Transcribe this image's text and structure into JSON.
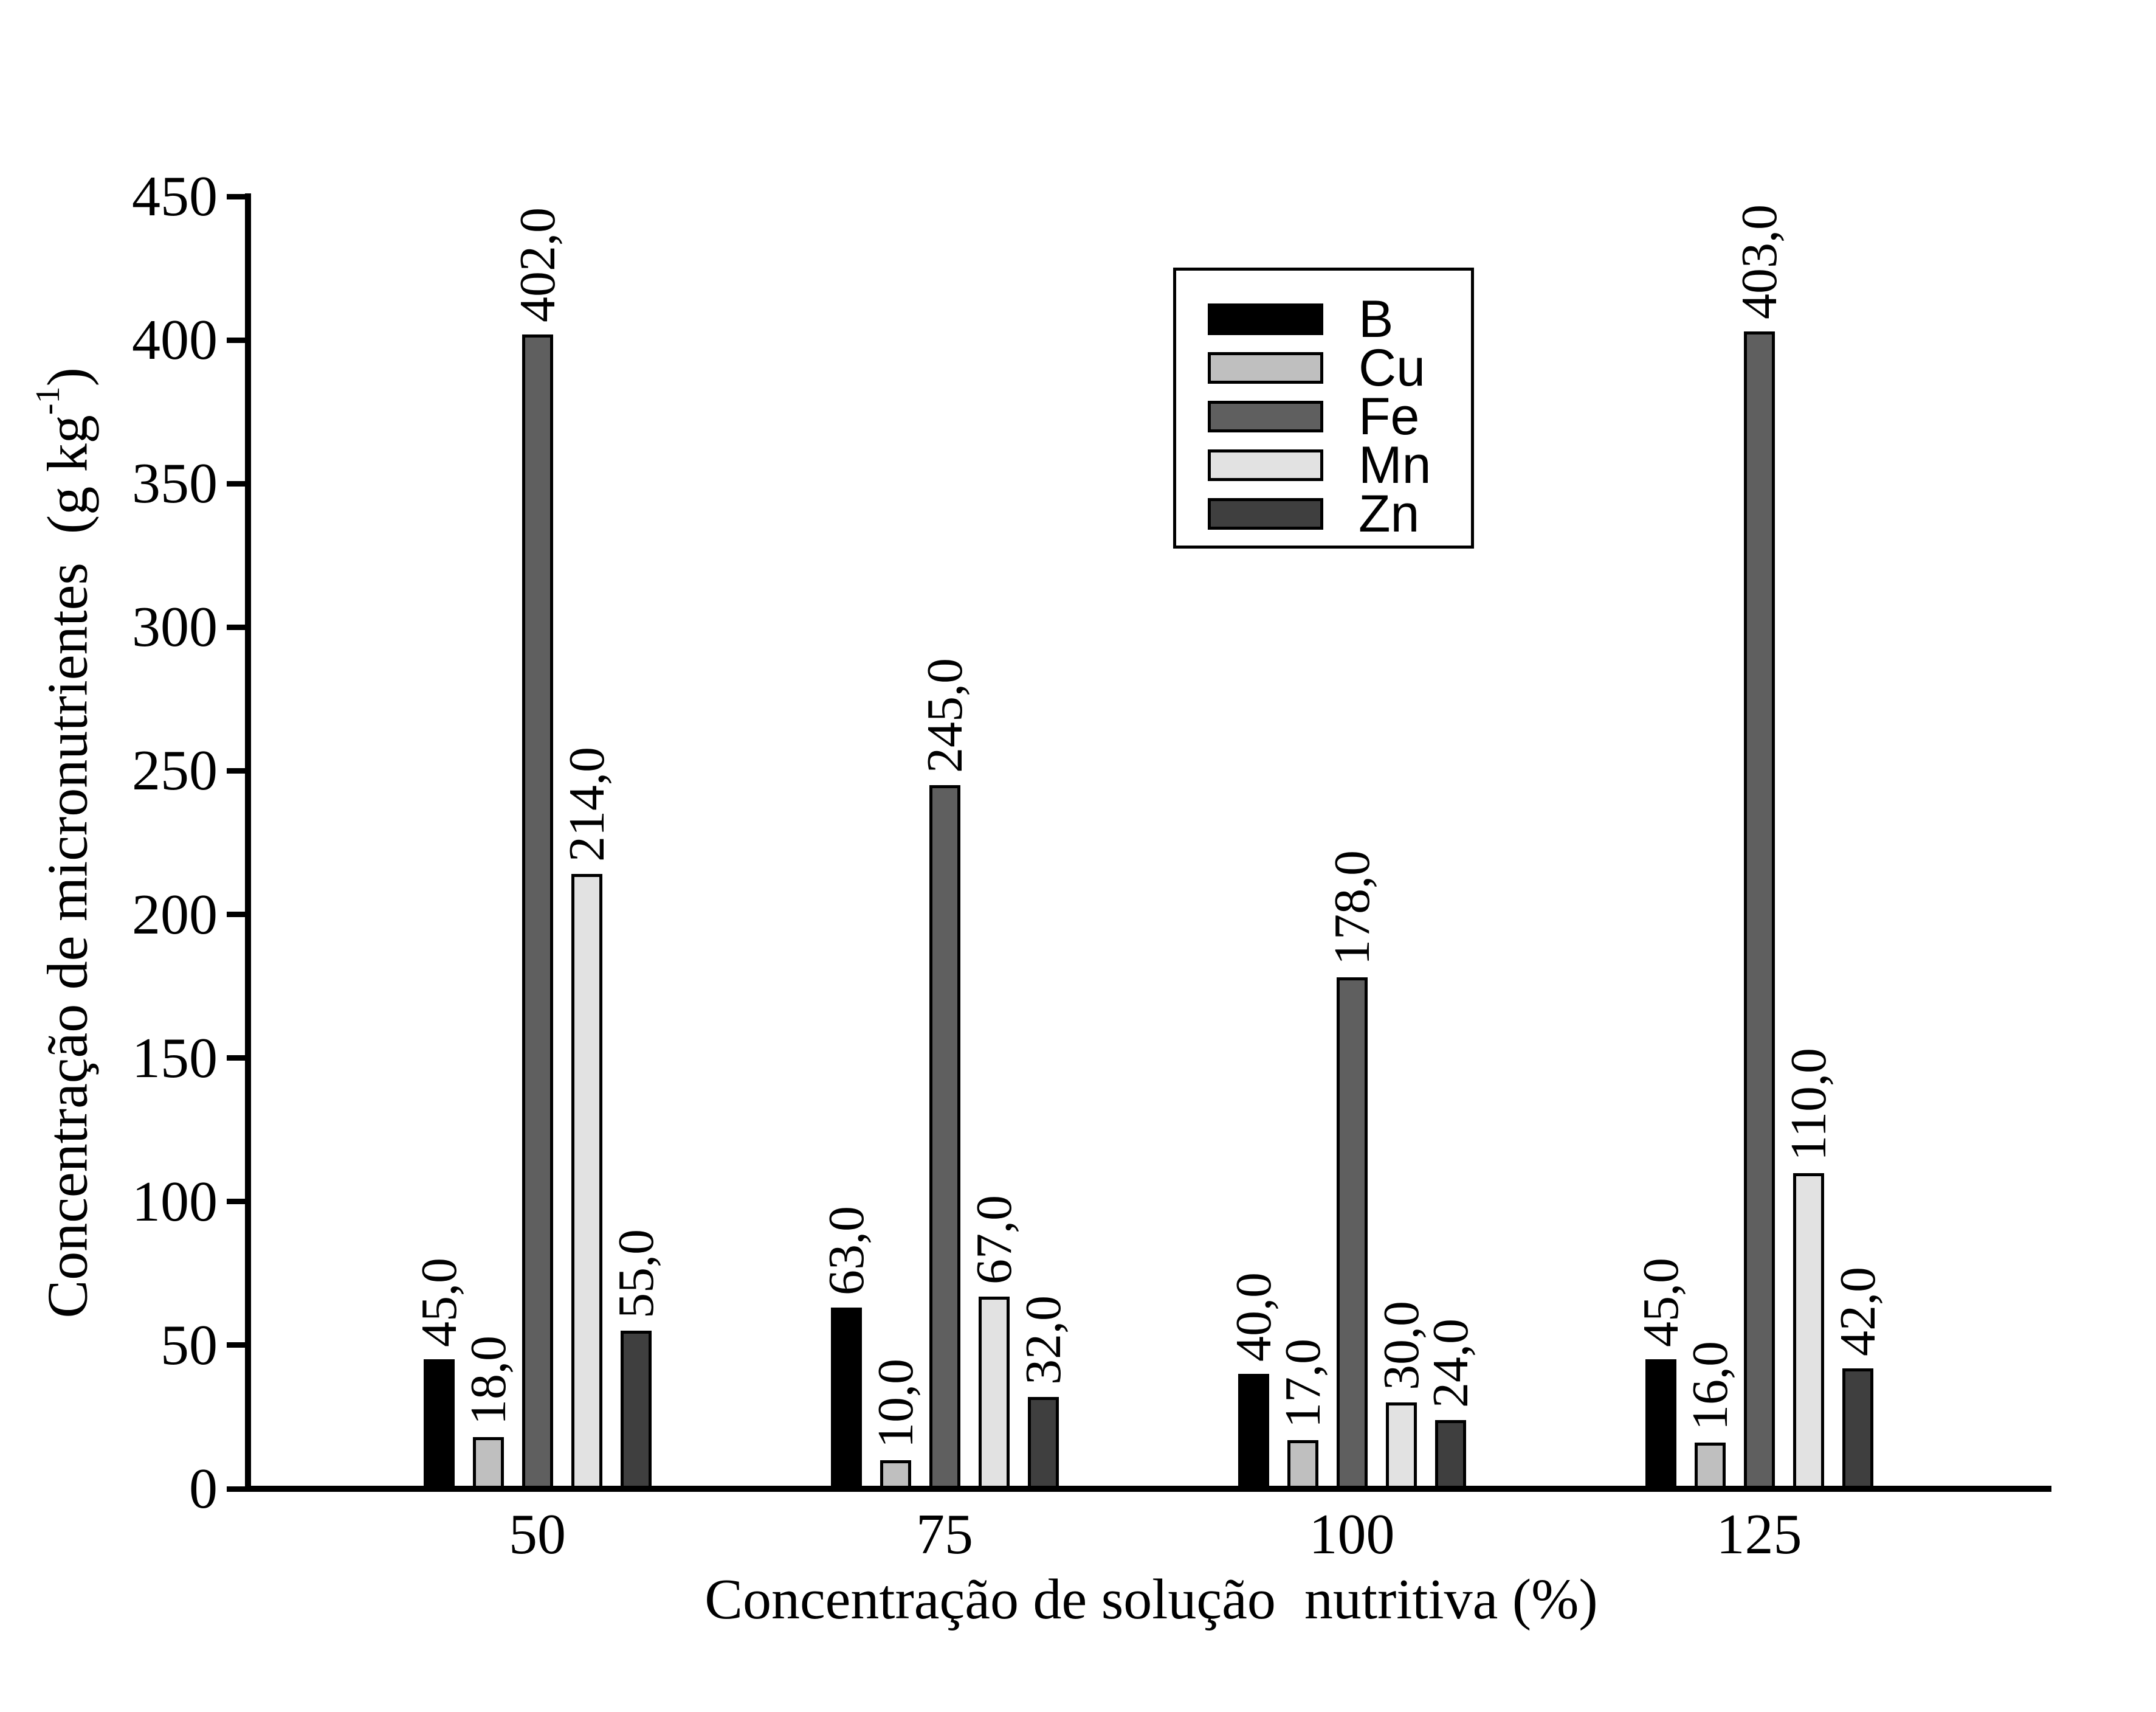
{
  "figure": {
    "background": "#ffffff",
    "text_color": "#000000"
  },
  "y_axis": {
    "title_prefix": "Concentração de micronutrientes  (g kg",
    "title_sup": "-1",
    "title_suffix": ")",
    "ticks": [
      "0",
      "50",
      "100",
      "150",
      "200",
      "250",
      "300",
      "350",
      "400",
      "450"
    ]
  },
  "x_axis": {
    "title": "Concentração de solução  nutritiva (%)",
    "categories": [
      "50",
      "75",
      "100",
      "125"
    ]
  },
  "legend": {
    "entries": [
      {
        "label": "B",
        "color": "#000000"
      },
      {
        "label": "Cu",
        "color": "#bfbfbf"
      },
      {
        "label": "Fe",
        "color": "#5f5f5f"
      },
      {
        "label": "Mn",
        "color": "#e2e2e2"
      },
      {
        "label": "Zn",
        "color": "#3f3f3f"
      }
    ]
  },
  "chart_data": {
    "type": "bar",
    "title": "",
    "xlabel": "Concentração de solução  nutritiva (%)",
    "ylabel": "Concentração de micronutrientes (g kg-1)",
    "categories": [
      "50",
      "75",
      "100",
      "125"
    ],
    "series": [
      {
        "name": "B",
        "color": "#000000",
        "values": [
          45,
          63,
          40,
          45
        ],
        "labels": [
          "45,0",
          "63,0",
          "40,0",
          "45,0"
        ]
      },
      {
        "name": "Cu",
        "color": "#bfbfbf",
        "values": [
          18,
          10,
          17,
          16
        ],
        "labels": [
          "18,0",
          "10,0",
          "17,0",
          "16,0"
        ]
      },
      {
        "name": "Fe",
        "color": "#5f5f5f",
        "values": [
          402,
          245,
          178,
          403
        ],
        "labels": [
          "402,0",
          "245,0",
          "178,0",
          "403,0"
        ]
      },
      {
        "name": "Mn",
        "color": "#e2e2e2",
        "values": [
          214,
          67,
          30,
          110
        ],
        "labels": [
          "214,0",
          "67,0",
          "30,0",
          "110,0"
        ]
      },
      {
        "name": "Zn",
        "color": "#3f3f3f",
        "values": [
          55,
          32,
          24,
          42
        ],
        "labels": [
          "55,0",
          "32,0",
          "24,0",
          "42,0"
        ]
      }
    ],
    "ylim": [
      0,
      450
    ],
    "ytick_step": 50,
    "grid": false,
    "bar_value_labels": "rotated-90-above-bar",
    "legend_position": "upper-center"
  }
}
